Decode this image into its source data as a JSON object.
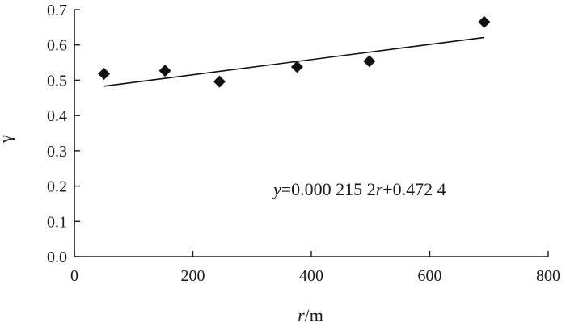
{
  "chart_data": {
    "type": "scatter",
    "title": "",
    "xlabel_var": "r",
    "xlabel_unit": "/m",
    "ylabel": "γ",
    "xlim": [
      0,
      800
    ],
    "ylim": [
      0.0,
      0.7
    ],
    "x_ticks": [
      "0",
      "200",
      "400",
      "600",
      "800"
    ],
    "y_ticks": [
      "0.0",
      "0.1",
      "0.2",
      "0.3",
      "0.4",
      "0.5",
      "0.6",
      "0.7"
    ],
    "grid": false,
    "legend": "none",
    "series": [
      {
        "marker": "diamond",
        "points": [
          {
            "x": 50,
            "y": 0.518
          },
          {
            "x": 153,
            "y": 0.527
          },
          {
            "x": 245,
            "y": 0.496
          },
          {
            "x": 376,
            "y": 0.538
          },
          {
            "x": 498,
            "y": 0.554
          },
          {
            "x": 692,
            "y": 0.665
          }
        ]
      }
    ],
    "fit_line": {
      "x_start": 50,
      "x_end": 692,
      "slope": 0.0002152,
      "intercept": 0.4724
    },
    "annotation": {
      "y_var": "y",
      "part1": "=0.000 215 2",
      "r_var": "r",
      "part2": "+0.472 4"
    },
    "colors": {
      "axis": "#1a1a1a",
      "marker": "#111111",
      "line": "#111111"
    }
  }
}
